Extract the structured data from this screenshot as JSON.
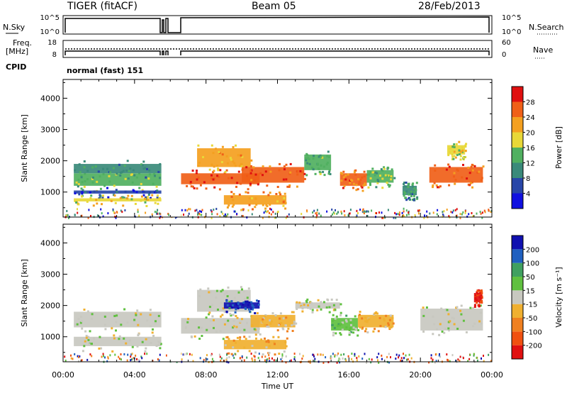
{
  "header": {
    "radar": "TIGER (fitACF)",
    "beam": "Beam 05",
    "date": "28/Feb/2013"
  },
  "status_panels": {
    "nsky_label": "N.Sky",
    "nsearch_label": "N.Search",
    "nsky_ticks": [
      "10^5",
      "10^0"
    ],
    "nsearch_ticks": [
      "10^5",
      "10^0"
    ],
    "freq_label_line1": "Freq.",
    "freq_label_line2": "[MHz]",
    "freq_ticks": [
      "18",
      "8"
    ],
    "nave_label": "Nave",
    "nave_ticks": [
      "60",
      "0"
    ],
    "cpid_label": "CPID",
    "cpid_text": "normal (fast) 151"
  },
  "chart_data": [
    {
      "type": "heatmap",
      "name": "power-panel",
      "ylabel": "Slant Range [km]",
      "yticks": [
        "1000",
        "2000",
        "3000",
        "4000"
      ],
      "yticks_values": [
        1000,
        2000,
        3000,
        4000
      ],
      "ylim": [
        200,
        4600
      ],
      "xlim_hours": [
        0,
        24
      ],
      "colorbar": {
        "label": "Power [dB]",
        "ticks": [
          "4",
          "8",
          "12",
          "16",
          "20",
          "24",
          "28"
        ],
        "range": [
          0,
          30
        ],
        "colors": [
          "#1010e0",
          "#2846a8",
          "#3a8a7a",
          "#50b060",
          "#e8d838",
          "#f4a020",
          "#f06018",
          "#e01010"
        ]
      },
      "data_gap_hours": [
        [
          5.55,
          5.75
        ],
        [
          5.95,
          6.6
        ]
      ],
      "regions": [
        {
          "t0": 0.6,
          "t1": 5.5,
          "r0": 1200,
          "r1": 1600,
          "value": 14
        },
        {
          "t0": 0.6,
          "t1": 5.5,
          "r0": 1600,
          "r1": 1900,
          "value": 10
        },
        {
          "t0": 0.6,
          "t1": 5.5,
          "r0": 950,
          "r1": 1050,
          "value": 6
        },
        {
          "t0": 0.6,
          "t1": 5.5,
          "r0": 700,
          "r1": 800,
          "value": 18
        },
        {
          "t0": 6.6,
          "t1": 11.0,
          "r0": 1250,
          "r1": 1600,
          "value": 26
        },
        {
          "t0": 7.5,
          "t1": 10.5,
          "r0": 1800,
          "r1": 2400,
          "value": 20
        },
        {
          "t0": 10.0,
          "t1": 13.5,
          "r0": 1300,
          "r1": 1800,
          "value": 25
        },
        {
          "t0": 9.0,
          "t1": 12.5,
          "r0": 600,
          "r1": 900,
          "value": 22
        },
        {
          "t0": 13.5,
          "t1": 15.0,
          "r0": 1700,
          "r1": 2200,
          "value": 12
        },
        {
          "t0": 15.5,
          "t1": 17.0,
          "r0": 1200,
          "r1": 1600,
          "value": 23
        },
        {
          "t0": 17.0,
          "t1": 18.5,
          "r0": 1300,
          "r1": 1700,
          "value": 14
        },
        {
          "t0": 19.0,
          "t1": 19.8,
          "r0": 900,
          "r1": 1200,
          "value": 10
        },
        {
          "t0": 20.5,
          "t1": 23.5,
          "r0": 1300,
          "r1": 1800,
          "value": 24
        },
        {
          "t0": 21.5,
          "t1": 22.5,
          "r0": 2200,
          "r1": 2500,
          "value": 16
        }
      ]
    },
    {
      "type": "heatmap",
      "name": "velocity-panel",
      "ylabel": "Slant Range [km]",
      "yticks": [
        "1000",
        "2000",
        "3000",
        "4000"
      ],
      "yticks_values": [
        1000,
        2000,
        3000,
        4000
      ],
      "ylim": [
        200,
        4600
      ],
      "xlim_hours": [
        0,
        24
      ],
      "xticks": [
        "00:00",
        "04:00",
        "08:00",
        "12:00",
        "16:00",
        "20:00",
        "00:00"
      ],
      "xticks_hours": [
        0,
        4,
        8,
        12,
        16,
        20,
        24
      ],
      "xlabel": "Time UT",
      "colorbar": {
        "label": "Velocity [m s⁻¹]",
        "ticks": [
          "-200",
          "-100",
          "-50",
          "-15",
          "15",
          "50",
          "100",
          "200"
        ],
        "range": [
          -250,
          250
        ],
        "colors": [
          "#e01010",
          "#f05010",
          "#f08020",
          "#f0b030",
          "#c8c8c0",
          "#60c040",
          "#40a060",
          "#2060c0",
          "#1010b0"
        ]
      },
      "data_gap_hours": [
        [
          5.55,
          5.75
        ],
        [
          5.95,
          6.6
        ]
      ],
      "regions": [
        {
          "t0": 0.6,
          "t1": 5.5,
          "r0": 1300,
          "r1": 1800,
          "value": 0
        },
        {
          "t0": 0.6,
          "t1": 5.5,
          "r0": 700,
          "r1": 1000,
          "value": 0
        },
        {
          "t0": 6.6,
          "t1": 11.0,
          "r0": 1100,
          "r1": 1600,
          "value": 0
        },
        {
          "t0": 7.5,
          "t1": 10.5,
          "r0": 1800,
          "r1": 2500,
          "value": 0
        },
        {
          "t0": 9.0,
          "t1": 11.0,
          "r0": 1900,
          "r1": 2100,
          "value": 200
        },
        {
          "t0": 9.0,
          "t1": 12.5,
          "r0": 600,
          "r1": 900,
          "value": -60
        },
        {
          "t0": 10.5,
          "t1": 13.0,
          "r0": 1300,
          "r1": 1700,
          "value": -40
        },
        {
          "t0": 13.0,
          "t1": 15.5,
          "r0": 1900,
          "r1": 2100,
          "value": 0
        },
        {
          "t0": 15.0,
          "t1": 16.5,
          "r0": 1200,
          "r1": 1600,
          "value": 60
        },
        {
          "t0": 16.5,
          "t1": 18.5,
          "r0": 1300,
          "r1": 1700,
          "value": -70
        },
        {
          "t0": 20.0,
          "t1": 23.5,
          "r0": 1200,
          "r1": 1900,
          "value": 0
        },
        {
          "t0": 23.0,
          "t1": 23.4,
          "r0": 2100,
          "r1": 2400,
          "value": -200
        }
      ]
    }
  ],
  "colors": {
    "frame": "#000000",
    "background": "#ffffff",
    "gap": "#ffffff"
  }
}
